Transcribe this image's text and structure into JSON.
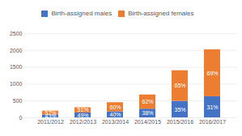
{
  "chart_data": {
    "type": "bar",
    "stacked": true,
    "categories": [
      "2011/2012",
      "2012/2013",
      "2013/2014",
      "2014/2015",
      "2015/2016",
      "2016/2017"
    ],
    "series": [
      {
        "name": "Birth-assigned males",
        "color": "#4472c4",
        "values": [
          86,
          147,
          180,
          258,
          490,
          626
        ],
        "percent_labels": [
          "43%",
          "49%",
          "40%",
          "38%",
          "35%",
          "31%"
        ]
      },
      {
        "name": "Birth-assigned females",
        "color": "#ed7d31",
        "values": [
          114,
          153,
          270,
          422,
          910,
          1394
        ],
        "percent_labels": [
          "57%",
          "51%",
          "60%",
          "62%",
          "65%",
          "69%"
        ]
      }
    ],
    "ylim": [
      0,
      2500
    ],
    "yticks": [
      0,
      500,
      1000,
      1500,
      2000,
      2500
    ],
    "grid": true,
    "legend": "top"
  }
}
